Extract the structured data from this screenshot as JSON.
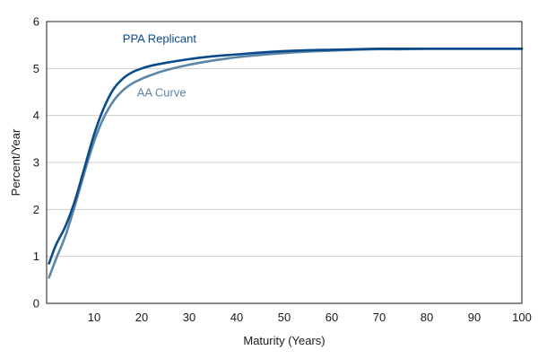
{
  "chart_data": {
    "type": "line",
    "title": "",
    "xlabel": "Maturity (Years)",
    "ylabel": "Percent/Year",
    "xlim": [
      0,
      100
    ],
    "ylim": [
      0,
      6
    ],
    "x_ticks": [
      10,
      20,
      30,
      40,
      50,
      60,
      70,
      80,
      90,
      100
    ],
    "y_ticks": [
      0,
      1,
      2,
      3,
      4,
      5,
      6
    ],
    "grid": "horizontal",
    "legend": "none",
    "series": [
      {
        "name": "PPA Replicant",
        "color": "#0b4a8b",
        "label_anchor": {
          "x": 16,
          "y": 5.55
        },
        "x": [
          0.5,
          2,
          4,
          6,
          8,
          10,
          12,
          14,
          16,
          18,
          20,
          22,
          25,
          30,
          35,
          40,
          45,
          50,
          55,
          60,
          65,
          70,
          75,
          80,
          85,
          90,
          95,
          100
        ],
        "y": [
          0.85,
          1.25,
          1.65,
          2.2,
          2.9,
          3.6,
          4.15,
          4.55,
          4.78,
          4.92,
          5.0,
          5.06,
          5.12,
          5.2,
          5.26,
          5.3,
          5.34,
          5.37,
          5.39,
          5.4,
          5.41,
          5.42,
          5.42,
          5.42,
          5.42,
          5.42,
          5.42,
          5.42
        ]
      },
      {
        "name": "AA Curve",
        "color": "#5c86a6",
        "label_anchor": {
          "x": 19,
          "y": 4.4
        },
        "x": [
          0.5,
          2,
          4,
          6,
          8,
          10,
          12,
          14,
          16,
          18,
          20,
          22,
          25,
          30,
          35,
          40,
          45,
          50,
          55,
          60,
          65,
          70,
          75,
          80,
          85,
          90,
          95,
          100
        ],
        "y": [
          0.55,
          0.95,
          1.45,
          2.1,
          2.8,
          3.45,
          3.95,
          4.3,
          4.53,
          4.68,
          4.78,
          4.86,
          4.96,
          5.08,
          5.17,
          5.24,
          5.29,
          5.33,
          5.36,
          5.38,
          5.4,
          5.41,
          5.41,
          5.42,
          5.42,
          5.42,
          5.42,
          5.42
        ]
      }
    ]
  }
}
